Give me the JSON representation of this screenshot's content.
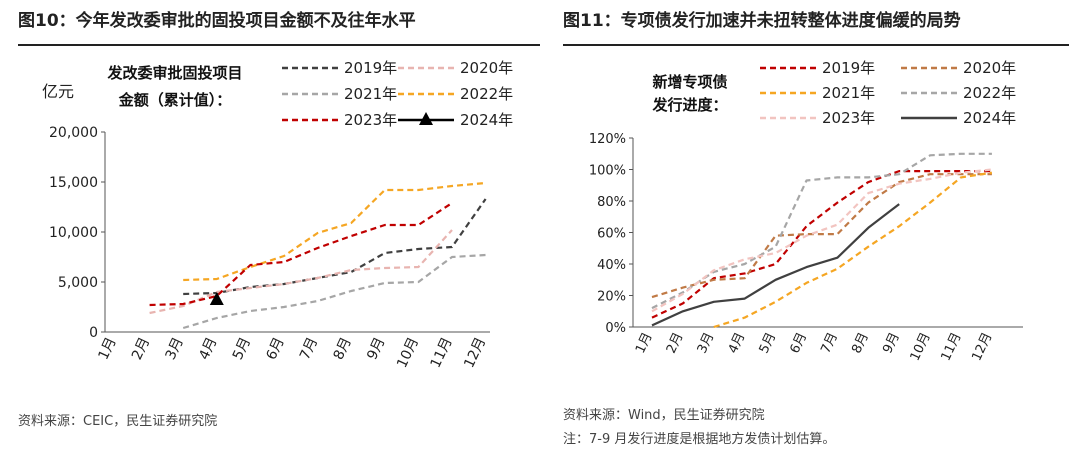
{
  "colors": {
    "y2019": "#404040",
    "y2020": "#e8b4b0",
    "y2021": "#a6a6a6",
    "y2022": "#f5a623",
    "y2023": "#c00000",
    "y2024": "#000000",
    "r2019": "#c00000",
    "r2020": "#c07a46",
    "r2021": "#f5a623",
    "r2022": "#a6a6a6",
    "r2023": "#f2c4c0",
    "r2024": "#404040"
  },
  "chart_data": [
    {
      "type": "line",
      "title": "图10：今年发改委审批的固投项目金额不及往年水平",
      "legend_title": [
        "发改委审批固投项目",
        "金额（累计值）："
      ],
      "ylabel": "亿元",
      "xlabel": "",
      "categories": [
        "1月",
        "2月",
        "3月",
        "4月",
        "5月",
        "6月",
        "7月",
        "8月",
        "9月",
        "10月",
        "11月",
        "12月"
      ],
      "ylim": [
        0,
        20000
      ],
      "yticks": [
        "0",
        "5,000",
        "10,000",
        "15,000",
        "20,000"
      ],
      "ytick_values": [
        0,
        5000,
        10000,
        15000,
        20000
      ],
      "series": [
        {
          "name": "2019年",
          "color_key": "y2019",
          "dash": "6,4",
          "marker": "none",
          "values": [
            null,
            null,
            3800,
            3900,
            4500,
            4800,
            5400,
            6000,
            7900,
            8300,
            8500,
            13300
          ]
        },
        {
          "name": "2020年",
          "color_key": "y2020",
          "dash": "6,4",
          "marker": "none",
          "values": [
            null,
            1900,
            2600,
            4000,
            4400,
            4800,
            5400,
            6200,
            6400,
            6500,
            10200,
            null
          ]
        },
        {
          "name": "2021年",
          "color_key": "y2021",
          "dash": "6,4",
          "marker": "none",
          "values": [
            null,
            null,
            400,
            1400,
            2100,
            2500,
            3100,
            4100,
            4900,
            5000,
            7500,
            7700
          ]
        },
        {
          "name": "2022年",
          "color_key": "y2022",
          "dash": "6,4",
          "marker": "none",
          "values": [
            null,
            null,
            5200,
            5300,
            6500,
            7600,
            9900,
            10900,
            14200,
            14200,
            14600,
            14900
          ]
        },
        {
          "name": "2023年",
          "color_key": "y2023",
          "dash": "6,4",
          "marker": "none",
          "values": [
            null,
            2700,
            2800,
            3600,
            6700,
            7000,
            8400,
            9600,
            10700,
            10700,
            12900,
            null
          ]
        },
        {
          "name": "2024年",
          "color_key": "y2024",
          "dash": "",
          "marker": "triangle",
          "values": [
            null,
            null,
            null,
            3200,
            null,
            null,
            null,
            null,
            null,
            null,
            null,
            null
          ]
        }
      ]
    },
    {
      "type": "line",
      "title": "图11：专项债发行加速并未扭转整体进度偏缓的局势",
      "legend_title": [
        "新增专项债",
        "发行进度："
      ],
      "ylabel": "",
      "xlabel": "",
      "categories": [
        "1月",
        "2月",
        "3月",
        "4月",
        "5月",
        "6月",
        "7月",
        "8月",
        "9月",
        "10月",
        "11月",
        "12月"
      ],
      "ylim": [
        0,
        120
      ],
      "yticks": [
        "0%",
        "20%",
        "40%",
        "60%",
        "80%",
        "100%",
        "120%"
      ],
      "ytick_values": [
        0,
        20,
        40,
        60,
        80,
        100,
        120
      ],
      "series": [
        {
          "name": "2019年",
          "color_key": "r2019",
          "dash": "6,4",
          "values": [
            6,
            15,
            31,
            34,
            40,
            64,
            79,
            92,
            99,
            99,
            99,
            99
          ]
        },
        {
          "name": "2020年",
          "color_key": "r2020",
          "dash": "6,4",
          "values": [
            19,
            25,
            30,
            31,
            58,
            59,
            59,
            79,
            92,
            97,
            97,
            97
          ]
        },
        {
          "name": "2021年",
          "color_key": "r2021",
          "dash": "6,4",
          "values": [
            null,
            null,
            0,
            6,
            16,
            28,
            37,
            51,
            64,
            79,
            95,
            98
          ]
        },
        {
          "name": "2022年",
          "color_key": "r2022",
          "dash": "6,4",
          "values": [
            12,
            22,
            35,
            40,
            51,
            93,
            95,
            95,
            97,
            109,
            110,
            110
          ]
        },
        {
          "name": "2023年",
          "color_key": "r2023",
          "dash": "6,4",
          "values": [
            10,
            21,
            36,
            43,
            47,
            58,
            65,
            85,
            91,
            94,
            98,
            100
          ]
        },
        {
          "name": "2024年",
          "color_key": "r2024",
          "dash": "",
          "values": [
            1,
            10,
            16,
            18,
            30,
            38,
            44,
            63,
            78,
            null,
            null,
            null
          ]
        }
      ]
    }
  ],
  "footer": {
    "left_source": "资料来源：CEIC，民生证券研究院",
    "right_source": "资料来源：Wind，民生证券研究院",
    "right_note": "注：7-9 月发行进度是根据地方发债计划估算。"
  }
}
